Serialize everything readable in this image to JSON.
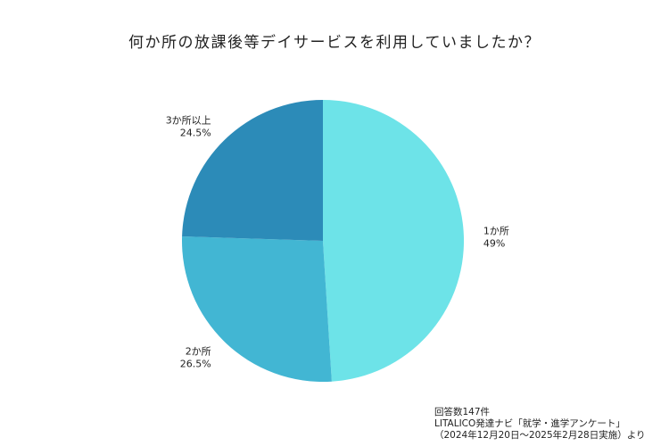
{
  "chart_data": {
    "type": "pie",
    "title": "何か所の放課後等デイサービスを利用していましたか？",
    "slices": [
      {
        "name": "1か所",
        "value": 49,
        "label": "49%",
        "color": "#6de3e8"
      },
      {
        "name": "2か所",
        "value": 26.5,
        "label": "26.5%",
        "color": "#42b6d3"
      },
      {
        "name": "3か所以上",
        "value": 24.5,
        "label": "24.5%",
        "color": "#2c8bb8"
      }
    ],
    "start_angle_deg": 0,
    "direction": "clockwise",
    "legend": "none"
  },
  "notes": {
    "line1": "回答数147件",
    "line2": "LITALICO発達ナビ「就学・進学アンケート」",
    "line3": "（2024年12月20日～2025年2月28日実施）より"
  }
}
